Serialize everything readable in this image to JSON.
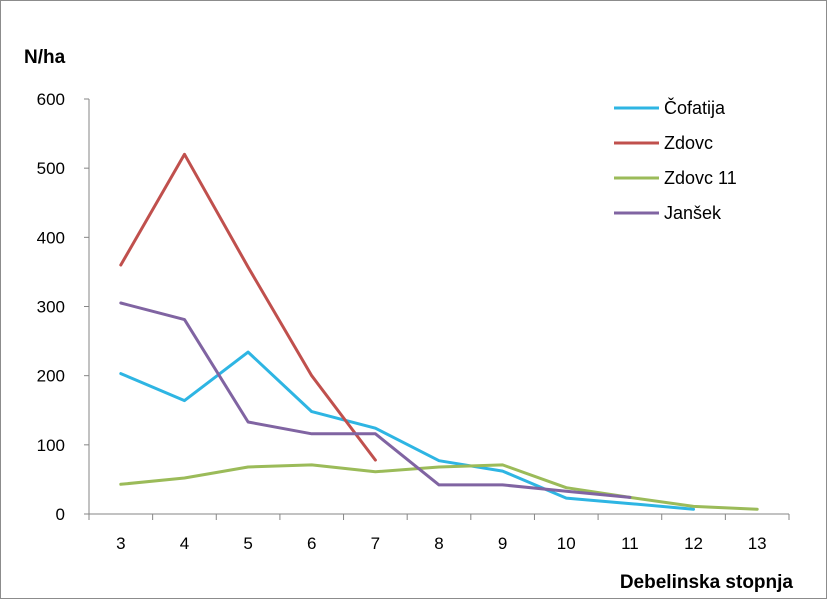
{
  "chart_data": {
    "type": "line",
    "title": "",
    "ylabel": "N/ha",
    "xlabel": "Debelinska stopnja",
    "categories": [
      "3",
      "4",
      "5",
      "6",
      "7",
      "8",
      "9",
      "10",
      "11",
      "12",
      "13"
    ],
    "ylim": [
      0,
      600
    ],
    "yticks": [
      "0",
      "100",
      "200",
      "300",
      "400",
      "500",
      "600"
    ],
    "grid": false,
    "legend_position": "top-right",
    "series": [
      {
        "name": "Čofatija",
        "color": "#2eb5e3",
        "values": [
          203,
          164,
          234,
          148,
          124,
          77,
          62,
          23,
          15,
          7,
          null
        ]
      },
      {
        "name": "Zdovc",
        "color": "#c0504d",
        "values": [
          360,
          520,
          357,
          200,
          78,
          null,
          null,
          null,
          null,
          null,
          null
        ]
      },
      {
        "name": "Zdovc 11",
        "color": "#9bbb59",
        "values": [
          43,
          52,
          68,
          71,
          61,
          68,
          71,
          38,
          24,
          11,
          7
        ]
      },
      {
        "name": "Janšek",
        "color": "#8064a2",
        "values": [
          305,
          281,
          133,
          116,
          116,
          42,
          42,
          33,
          24,
          null,
          null
        ]
      }
    ]
  }
}
